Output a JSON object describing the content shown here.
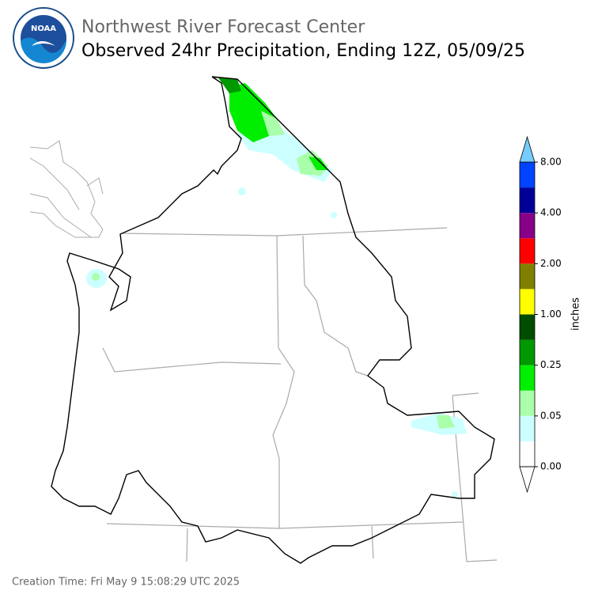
{
  "header": {
    "agency": "Northwest River Forecast Center",
    "title": "Observed 24hr Precipitation, Ending 12Z, 05/09/25"
  },
  "legend": {
    "label": "inches",
    "ticks": [
      {
        "value": 0,
        "label": "0.00"
      },
      {
        "value": 0.05,
        "label": "0.05"
      },
      {
        "value": 0.25,
        "label": "0.25"
      },
      {
        "value": 1,
        "label": "1.00"
      },
      {
        "value": 2,
        "label": "2.00"
      },
      {
        "value": 4,
        "label": "4.00"
      },
      {
        "value": 8,
        "label": "8.00"
      }
    ],
    "colors": [
      "#ffffff",
      "#ccffff",
      "#aaffaa",
      "#00ee00",
      "#009900",
      "#004d00",
      "#ffff00",
      "#808000",
      "#ff0000",
      "#880088",
      "#000099",
      "#0044ff"
    ],
    "under_color": "#ffffff",
    "over_color": "#77ccff"
  },
  "footer": {
    "creation_time": "Creation Time: Fri May 9 15:08:29 UTC 2025"
  }
}
